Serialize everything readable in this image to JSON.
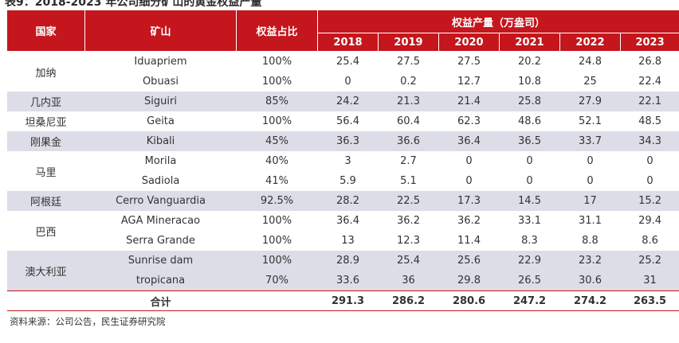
{
  "title": "表9：2018-2023 年公司细分矿山的黄金权益产量",
  "headers": {
    "country": "国家",
    "mine": "矿山",
    "share": "权益占比",
    "output_group": "权益产量（万盎司）",
    "years": [
      "2018",
      "2019",
      "2020",
      "2021",
      "2022",
      "2023"
    ]
  },
  "groups": [
    {
      "country": "加纳",
      "shade": false,
      "mines": [
        {
          "name": "Iduapriem",
          "share": "100%",
          "values": [
            "25.4",
            "27.5",
            "27.5",
            "20.2",
            "24.8",
            "26.8"
          ]
        },
        {
          "name": "Obuasi",
          "share": "100%",
          "values": [
            "0",
            "0.2",
            "12.7",
            "10.8",
            "25",
            "22.4"
          ]
        }
      ]
    },
    {
      "country": "几内亚",
      "shade": true,
      "mines": [
        {
          "name": "Siguiri",
          "share": "85%",
          "values": [
            "24.2",
            "21.3",
            "21.4",
            "25.8",
            "27.9",
            "22.1"
          ]
        }
      ]
    },
    {
      "country": "坦桑尼亚",
      "shade": false,
      "mines": [
        {
          "name": "Geita",
          "share": "100%",
          "values": [
            "56.4",
            "60.4",
            "62.3",
            "48.6",
            "52.1",
            "48.5"
          ]
        }
      ]
    },
    {
      "country": "刚果金",
      "shade": true,
      "mines": [
        {
          "name": "Kibali",
          "share": "45%",
          "values": [
            "36.3",
            "36.6",
            "36.4",
            "36.5",
            "33.7",
            "34.3"
          ]
        }
      ]
    },
    {
      "country": "马里",
      "shade": false,
      "mines": [
        {
          "name": "Morila",
          "share": "40%",
          "values": [
            "3",
            "2.7",
            "0",
            "0",
            "0",
            "0"
          ]
        },
        {
          "name": "Sadiola",
          "share": "41%",
          "values": [
            "5.9",
            "5.1",
            "0",
            "0",
            "0",
            "0"
          ]
        }
      ]
    },
    {
      "country": "阿根廷",
      "shade": true,
      "mines": [
        {
          "name": "Cerro Vanguardia",
          "share": "92.5%",
          "values": [
            "28.2",
            "22.5",
            "17.3",
            "14.5",
            "17",
            "15.2"
          ]
        }
      ]
    },
    {
      "country": "巴西",
      "shade": false,
      "mines": [
        {
          "name": "AGA Mineracao",
          "share": "100%",
          "values": [
            "36.4",
            "36.2",
            "36.2",
            "33.1",
            "31.1",
            "29.4"
          ]
        },
        {
          "name": "Serra Grande",
          "share": "100%",
          "values": [
            "13",
            "12.3",
            "11.4",
            "8.3",
            "8.8",
            "8.6"
          ]
        }
      ]
    },
    {
      "country": "澳大利亚",
      "shade": true,
      "mines": [
        {
          "name": "Sunrise dam",
          "share": "100%",
          "values": [
            "28.9",
            "25.4",
            "25.6",
            "22.9",
            "23.2",
            "25.2"
          ]
        },
        {
          "name": "tropicana",
          "share": "70%",
          "values": [
            "33.6",
            "36",
            "29.8",
            "26.5",
            "30.6",
            "31"
          ]
        }
      ]
    }
  ],
  "total": {
    "label": "合计",
    "values": [
      "291.3",
      "286.2",
      "280.6",
      "247.2",
      "274.2",
      "263.5"
    ]
  },
  "source": "资料来源：公司公告，民生证券研究院"
}
